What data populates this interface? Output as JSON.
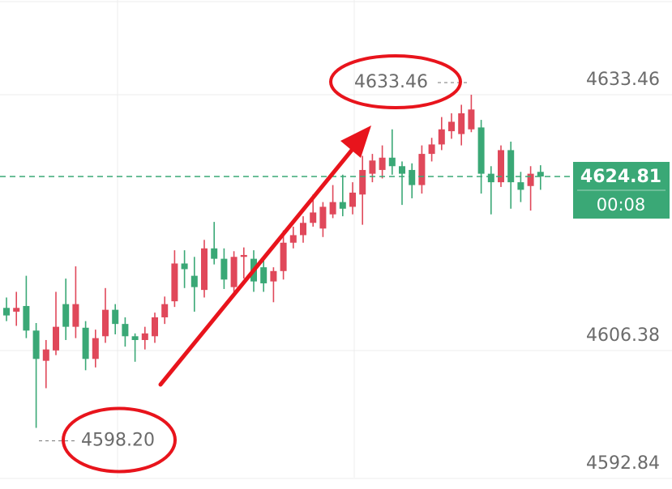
{
  "chart_data": {
    "type": "candlestick",
    "open": [
      4610.9,
      4610.5,
      4611.1,
      4608.5,
      4605.3,
      4606.4,
      4611.3,
      4608.9,
      4608.8,
      4605.5,
      4607.9,
      4610.7,
      4609.2,
      4607.9,
      4607.5,
      4607.9,
      4609.9,
      4611.6,
      4615.6,
      4614.3,
      4612.8,
      4617.2,
      4616.1,
      4613.1,
      4616.3,
      4616.1,
      4615.2,
      4613.7,
      4614.8,
      4617.8,
      4618.6,
      4619.9,
      4619.3,
      4620.8,
      4622.1,
      4621.6,
      4622.9,
      4625.1,
      4625.5,
      4626.8,
      4625.9,
      4625.5,
      4623.9,
      4627.2,
      4628.2,
      4629.6,
      4629.3,
      4629.8,
      4630.0,
      4625.1,
      4624.2,
      4627.6,
      4624.2,
      4623.8,
      4625.3
    ],
    "high": [
      4612.0,
      4612.6,
      4614.3,
      4609.3,
      4607.5,
      4612.6,
      4614.0,
      4615.3,
      4609.5,
      4608.6,
      4613.0,
      4611.3,
      4609.9,
      4608.2,
      4608.9,
      4610.4,
      4612.1,
      4617.0,
      4617.0,
      4616.3,
      4618.1,
      4620.0,
      4617.2,
      4616.9,
      4617.3,
      4617.0,
      4616.3,
      4615.2,
      4619.1,
      4619.5,
      4620.6,
      4622.9,
      4622.1,
      4623.9,
      4625.0,
      4624.2,
      4627.0,
      4627.2,
      4628.1,
      4629.8,
      4626.4,
      4626.2,
      4628.1,
      4628.9,
      4631.1,
      4631.5,
      4632.4,
      4633.46,
      4630.8,
      4625.9,
      4628.1,
      4628.5,
      4625.3,
      4625.9,
      4626.0
    ],
    "low": [
      4609.5,
      4609.0,
      4607.7,
      4598.2,
      4602.4,
      4605.9,
      4607.5,
      4607.7,
      4604.3,
      4604.6,
      4607.2,
      4608.1,
      4606.8,
      4605.2,
      4606.5,
      4607.2,
      4609.2,
      4611.0,
      4613.0,
      4610.5,
      4612.0,
      4615.5,
      4612.9,
      4612.2,
      4614.0,
      4612.6,
      4612.6,
      4611.5,
      4613.9,
      4617.2,
      4617.8,
      4619.5,
      4618.4,
      4620.4,
      4620.6,
      4620.8,
      4619.7,
      4624.2,
      4624.6,
      4625.0,
      4621.8,
      4622.5,
      4623.0,
      4626.4,
      4627.6,
      4628.8,
      4628.1,
      4629.5,
      4623.0,
      4620.8,
      4623.7,
      4621.4,
      4622.1,
      4621.2,
      4623.4
    ],
    "close": [
      4610.1,
      4610.9,
      4608.5,
      4605.5,
      4606.5,
      4608.9,
      4608.9,
      4611.3,
      4605.5,
      4607.7,
      4610.7,
      4609.2,
      4607.9,
      4607.5,
      4608.2,
      4609.9,
      4611.3,
      4615.6,
      4615.0,
      4613.1,
      4617.2,
      4616.1,
      4613.9,
      4616.3,
      4616.5,
      4613.7,
      4613.5,
      4614.8,
      4617.8,
      4618.6,
      4619.9,
      4621.0,
      4621.6,
      4622.1,
      4621.4,
      4623.1,
      4625.5,
      4626.5,
      4626.8,
      4625.9,
      4625.1,
      4623.9,
      4627.2,
      4628.2,
      4629.8,
      4630.6,
      4631.5,
      4631.9,
      4625.1,
      4624.2,
      4627.6,
      4624.2,
      4623.4,
      4625.1,
      4624.81
    ],
    "up_color": "#e0485a",
    "down_color": "#3aa876",
    "ylim": [
      4591.73,
      4643.49
    ],
    "yticks": [
      {
        "value": 4633.46,
        "label": "4633.46"
      },
      {
        "value": 4606.38,
        "label": "4606.38"
      },
      {
        "value": 4592.84,
        "label": "4592.84"
      }
    ],
    "grid": true,
    "high_annotation": 4633.46,
    "low_annotation": {
      "value": 4598.2,
      "label": "4598.20"
    },
    "last_price": 4624.81,
    "countdown": "00:08"
  }
}
